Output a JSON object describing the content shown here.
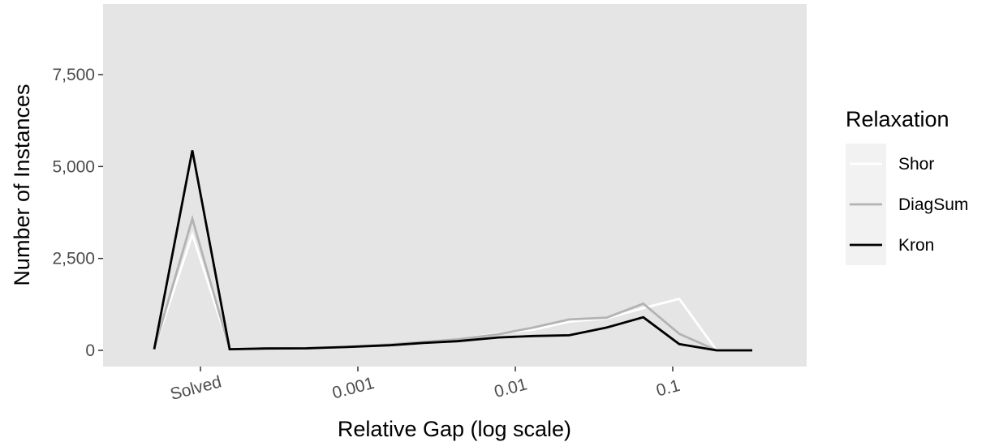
{
  "chart_data": {
    "type": "line",
    "xlabel": "Relative Gap (log scale)",
    "ylabel": "Number of Instances",
    "x_scale": "log",
    "x_ticks": [
      {
        "value": 0,
        "label": "Solved"
      },
      {
        "value": 0.001,
        "label": "0.001"
      },
      {
        "value": 0.01,
        "label": "0.01"
      },
      {
        "value": 0.1,
        "label": "0.1"
      }
    ],
    "y_ticks": [
      {
        "value": 0,
        "label": "0"
      },
      {
        "value": 2500,
        "label": "2,500"
      },
      {
        "value": 5000,
        "label": "5,000"
      },
      {
        "value": 7500,
        "label": "7,500"
      }
    ],
    "ylim": [
      -400,
      9400
    ],
    "grid": false,
    "background": "#e5e5e5",
    "legend": {
      "title": "Relaxation",
      "placement": "right",
      "entries": [
        "Shor",
        "DiagSum",
        "Kron"
      ]
    },
    "series": [
      {
        "name": "Shor",
        "color": "#ffffff",
        "points": [
          [
            "pre",
            30
          ],
          [
            "solved",
            3150
          ],
          [
            "post",
            30
          ],
          [
            0.00026,
            50
          ],
          [
            0.00047,
            60
          ],
          [
            0.00085,
            90
          ],
          [
            0.0016,
            150
          ],
          [
            0.0026,
            220
          ],
          [
            0.0043,
            300
          ],
          [
            0.0078,
            460
          ],
          [
            0.013,
            560
          ],
          [
            0.022,
            780
          ],
          [
            0.038,
            870
          ],
          [
            0.065,
            1150
          ],
          [
            0.11,
            1400
          ],
          [
            0.19,
            0
          ],
          [
            0.32,
            0
          ]
        ]
      },
      {
        "name": "DiagSum",
        "color": "#b3b3b3",
        "points": [
          [
            "pre",
            30
          ],
          [
            "solved",
            3580
          ],
          [
            "post",
            30
          ],
          [
            0.00026,
            50
          ],
          [
            0.00047,
            60
          ],
          [
            0.00085,
            95
          ],
          [
            0.0016,
            160
          ],
          [
            0.0026,
            230
          ],
          [
            0.0043,
            300
          ],
          [
            0.0078,
            440
          ],
          [
            0.013,
            620
          ],
          [
            0.022,
            840
          ],
          [
            0.038,
            890
          ],
          [
            0.065,
            1270
          ],
          [
            0.11,
            450
          ],
          [
            0.19,
            0
          ],
          [
            0.32,
            0
          ]
        ]
      },
      {
        "name": "Kron",
        "color": "#000000",
        "points": [
          [
            "pre",
            30
          ],
          [
            "solved",
            5440
          ],
          [
            "post",
            30
          ],
          [
            0.00026,
            50
          ],
          [
            0.00047,
            55
          ],
          [
            0.00085,
            90
          ],
          [
            0.0016,
            140
          ],
          [
            0.0026,
            200
          ],
          [
            0.0043,
            250
          ],
          [
            0.0078,
            350
          ],
          [
            0.013,
            390
          ],
          [
            0.022,
            410
          ],
          [
            0.038,
            620
          ],
          [
            0.065,
            900
          ],
          [
            0.11,
            170
          ],
          [
            0.19,
            0
          ],
          [
            0.32,
            0
          ]
        ]
      }
    ]
  }
}
